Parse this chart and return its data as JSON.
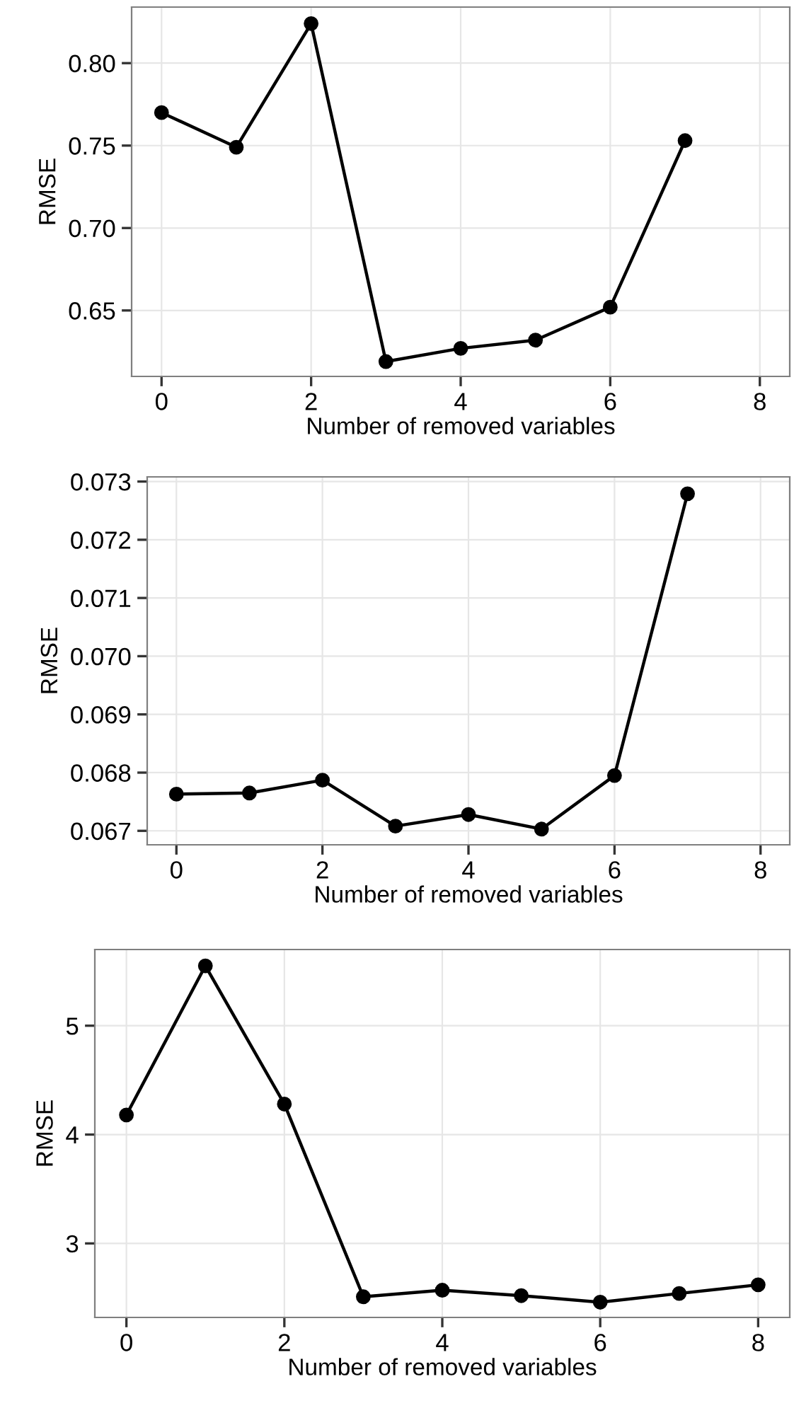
{
  "chart_data": [
    {
      "type": "line",
      "xlabel": "Number of removed variables",
      "ylabel": "RMSE",
      "x": [
        0,
        1,
        2,
        3,
        4,
        5,
        6,
        7
      ],
      "values": [
        0.77,
        0.749,
        0.824,
        0.619,
        0.627,
        0.632,
        0.652,
        0.753
      ],
      "color": "#000000",
      "marker": "circle",
      "line_style": "solid",
      "xlim": [
        -0.4,
        8.4
      ],
      "ylim": [
        0.61,
        0.834
      ],
      "xticks": [
        0,
        2,
        4,
        6,
        8
      ],
      "yticks": [
        0.65,
        {
          "value": 0.7,
          "label": "0.70"
        },
        0.75,
        {
          "value": 0.8,
          "label": "0.80"
        }
      ],
      "grid": true
    },
    {
      "type": "line",
      "xlabel": "Number of removed variables",
      "ylabel": "RMSE",
      "x": [
        0,
        1,
        2,
        3,
        4,
        5,
        6,
        7
      ],
      "values": [
        0.06763,
        0.06765,
        0.06787,
        0.06708,
        0.06728,
        0.06703,
        0.06795,
        0.07279
      ],
      "color": "#000000",
      "marker": "circle",
      "line_style": "solid",
      "xlim": [
        -0.4,
        8.4
      ],
      "ylim": [
        0.06676,
        0.07308
      ],
      "xticks": [
        0,
        2,
        4,
        6,
        8
      ],
      "yticks": [
        0.067,
        0.068,
        0.069,
        {
          "value": 0.07,
          "label": "0.070"
        },
        0.071,
        0.072,
        0.073
      ],
      "grid": true
    },
    {
      "type": "line",
      "xlabel": "Number of removed variables",
      "ylabel": "RMSE",
      "x": [
        0,
        1,
        2,
        3,
        4,
        5,
        6,
        7,
        8
      ],
      "values": [
        4.18,
        5.55,
        4.28,
        2.51,
        2.57,
        2.52,
        2.46,
        2.54,
        2.62
      ],
      "color": "#000000",
      "marker": "circle",
      "line_style": "solid",
      "xlim": [
        -0.4,
        8.4
      ],
      "ylim": [
        2.32,
        5.7
      ],
      "xticks": [
        0,
        2,
        4,
        6,
        8
      ],
      "yticks": [
        3,
        4,
        5
      ],
      "grid": true
    }
  ]
}
